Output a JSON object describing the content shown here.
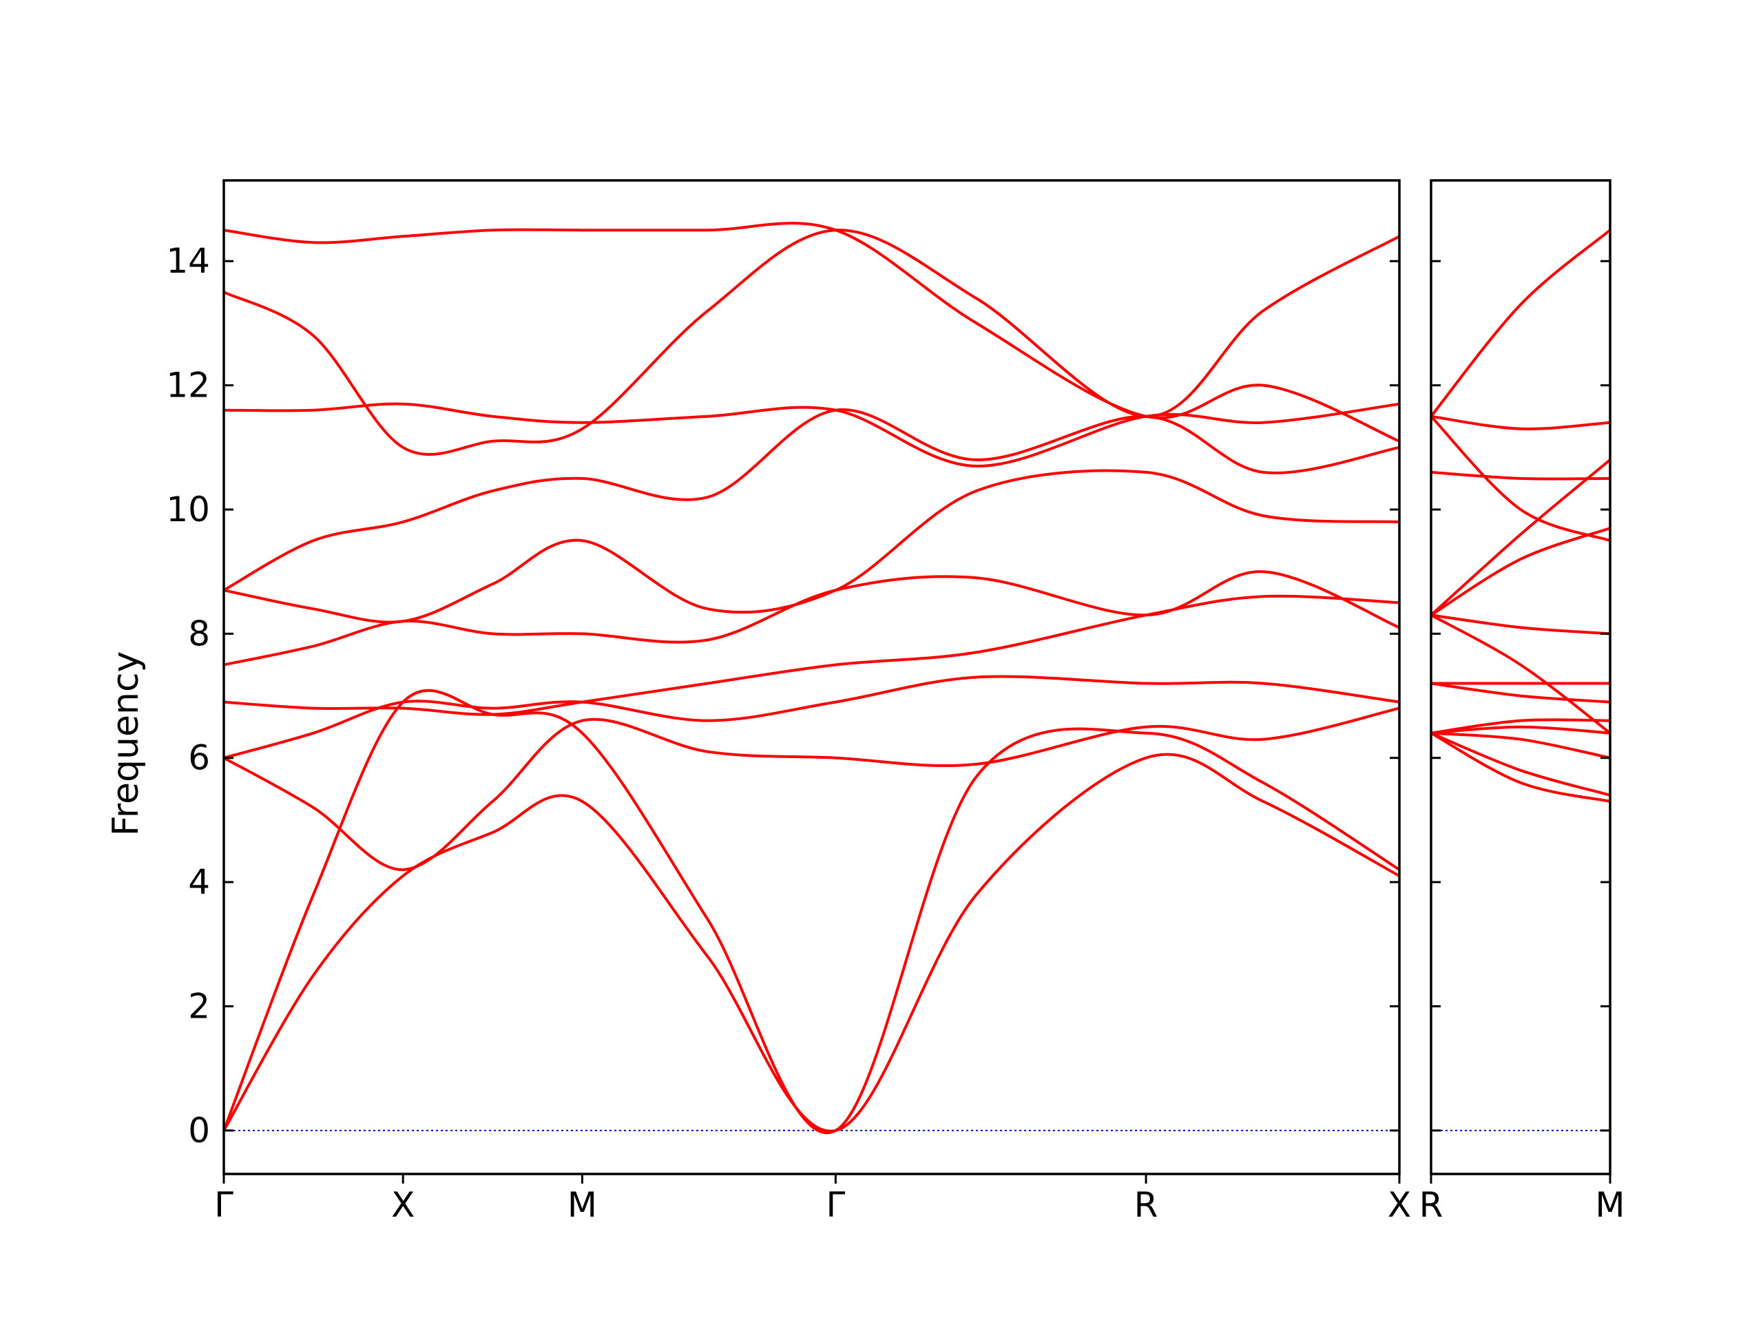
{
  "chart_data": {
    "type": "line",
    "ylabel": "Frequency",
    "ylim": [
      -0.7,
      15.3
    ],
    "yticks": [
      "0",
      "2",
      "4",
      "6",
      "8",
      "10",
      "12",
      "14"
    ],
    "series_color": "#ff0000",
    "zero_line_color": "#0000cc",
    "panels": [
      {
        "id": "left",
        "xticks": [
          {
            "label": "Γ",
            "x": 0
          },
          {
            "label": "X",
            "x": 0.5
          },
          {
            "label": "M",
            "x": 1.0
          },
          {
            "label": "Γ",
            "x": 1.707
          },
          {
            "label": "R",
            "x": 2.573
          },
          {
            "label": "X",
            "x": 3.28
          }
        ],
        "xlim": [
          0,
          3.28
        ],
        "series": [
          {
            "x": [
              0,
              0.25,
              0.5,
              0.75,
              1.0,
              1.35,
              1.707,
              2.1,
              2.573,
              2.9,
              3.28
            ],
            "y": [
              0.0,
              2.5,
              4.1,
              4.8,
              5.3,
              2.8,
              0.0,
              3.8,
              6.0,
              5.3,
              4.1
            ]
          },
          {
            "x": [
              0,
              0.25,
              0.5,
              0.75,
              1.0,
              1.35,
              1.707,
              2.1,
              2.573,
              2.9,
              3.28
            ],
            "y": [
              0.0,
              3.8,
              6.9,
              6.7,
              6.4,
              3.4,
              0.0,
              5.7,
              6.4,
              5.6,
              4.2
            ]
          },
          {
            "x": [
              0,
              0.25,
              0.5,
              0.75,
              1.0,
              1.35,
              1.707,
              2.1,
              2.573,
              2.9,
              3.28
            ],
            "y": [
              6.0,
              5.2,
              4.2,
              5.3,
              6.6,
              6.1,
              6.0,
              5.9,
              6.5,
              6.3,
              6.8
            ]
          },
          {
            "x": [
              0,
              0.25,
              0.5,
              0.75,
              1.0,
              1.35,
              1.707,
              2.1,
              2.573,
              2.9,
              3.28
            ],
            "y": [
              6.0,
              6.4,
              6.9,
              6.8,
              6.9,
              6.6,
              6.9,
              7.3,
              7.2,
              7.2,
              6.9
            ]
          },
          {
            "x": [
              0,
              0.25,
              0.5,
              0.75,
              1.0,
              1.35,
              1.707,
              2.1,
              2.573,
              2.9,
              3.28
            ],
            "y": [
              6.9,
              6.8,
              6.8,
              6.7,
              6.9,
              7.2,
              7.5,
              7.7,
              8.3,
              8.6,
              8.5
            ]
          },
          {
            "x": [
              0,
              0.25,
              0.5,
              0.75,
              1.0,
              1.35,
              1.707,
              2.1,
              2.573,
              2.9,
              3.28
            ],
            "y": [
              7.5,
              7.8,
              8.2,
              8.0,
              8.0,
              7.9,
              8.7,
              8.9,
              8.3,
              9.0,
              8.1
            ]
          },
          {
            "x": [
              0,
              0.25,
              0.5,
              0.75,
              1.0,
              1.35,
              1.707,
              2.1,
              2.573,
              2.9,
              3.28
            ],
            "y": [
              8.7,
              8.4,
              8.2,
              8.8,
              9.5,
              8.4,
              8.7,
              10.3,
              10.6,
              9.9,
              9.8
            ]
          },
          {
            "x": [
              0,
              0.25,
              0.5,
              0.75,
              1.0,
              1.35,
              1.707,
              2.1,
              2.573,
              2.9,
              3.28
            ],
            "y": [
              8.7,
              9.5,
              9.8,
              10.3,
              10.5,
              10.2,
              11.6,
              10.8,
              11.5,
              10.6,
              11.0
            ]
          },
          {
            "x": [
              0,
              0.25,
              0.5,
              0.75,
              1.0,
              1.35,
              1.707,
              2.1,
              2.573,
              2.9,
              3.28
            ],
            "y": [
              11.6,
              11.6,
              11.7,
              11.5,
              11.4,
              11.5,
              11.6,
              10.7,
              11.5,
              11.4,
              11.7
            ]
          },
          {
            "x": [
              0,
              0.25,
              0.5,
              0.75,
              1.0,
              1.35,
              1.707,
              2.1,
              2.573,
              2.9,
              3.28
            ],
            "y": [
              13.5,
              12.8,
              11.0,
              11.1,
              11.3,
              13.2,
              14.5,
              13.4,
              11.5,
              13.2,
              14.4
            ]
          },
          {
            "x": [
              0,
              0.25,
              0.5,
              0.75,
              1.0,
              1.35,
              1.707,
              2.1,
              2.573,
              2.9,
              3.28
            ],
            "y": [
              14.5,
              14.3,
              14.4,
              14.5,
              14.5,
              14.5,
              14.5,
              13.0,
              11.5,
              12.0,
              11.1
            ]
          }
        ]
      },
      {
        "id": "right",
        "xticks": [
          {
            "label": "R",
            "x": 0
          },
          {
            "label": "M",
            "x": 0.5
          }
        ],
        "xlim": [
          0,
          0.5
        ],
        "series": [
          {
            "x": [
              0,
              0.25,
              0.5
            ],
            "y": [
              6.4,
              5.6,
              5.3
            ]
          },
          {
            "x": [
              0,
              0.25,
              0.5
            ],
            "y": [
              6.4,
              5.8,
              5.4
            ]
          },
          {
            "x": [
              0,
              0.25,
              0.5
            ],
            "y": [
              6.4,
              6.3,
              6.0
            ]
          },
          {
            "x": [
              0,
              0.25,
              0.5
            ],
            "y": [
              6.4,
              6.5,
              6.4
            ]
          },
          {
            "x": [
              0,
              0.25,
              0.5
            ],
            "y": [
              6.4,
              6.6,
              6.6
            ]
          },
          {
            "x": [
              0,
              0.25,
              0.5
            ],
            "y": [
              7.2,
              7.0,
              6.9
            ]
          },
          {
            "x": [
              0,
              0.25,
              0.5
            ],
            "y": [
              7.2,
              7.2,
              7.2
            ]
          },
          {
            "x": [
              0,
              0.25,
              0.5
            ],
            "y": [
              8.3,
              8.1,
              8.0
            ]
          },
          {
            "x": [
              0,
              0.25,
              0.5
            ],
            "y": [
              8.3,
              7.5,
              6.4
            ]
          },
          {
            "x": [
              0,
              0.25,
              0.5
            ],
            "y": [
              8.3,
              9.2,
              9.7
            ]
          },
          {
            "x": [
              0,
              0.25,
              0.5
            ],
            "y": [
              8.3,
              9.6,
              10.8
            ]
          },
          {
            "x": [
              0,
              0.25,
              0.5
            ],
            "y": [
              10.6,
              10.5,
              10.5
            ]
          },
          {
            "x": [
              0,
              0.25,
              0.5
            ],
            "y": [
              11.5,
              10.0,
              9.5
            ]
          },
          {
            "x": [
              0,
              0.25,
              0.5
            ],
            "y": [
              11.5,
              11.3,
              11.4
            ]
          },
          {
            "x": [
              0,
              0.25,
              0.5
            ],
            "y": [
              11.5,
              13.3,
              14.5
            ]
          }
        ]
      }
    ]
  }
}
